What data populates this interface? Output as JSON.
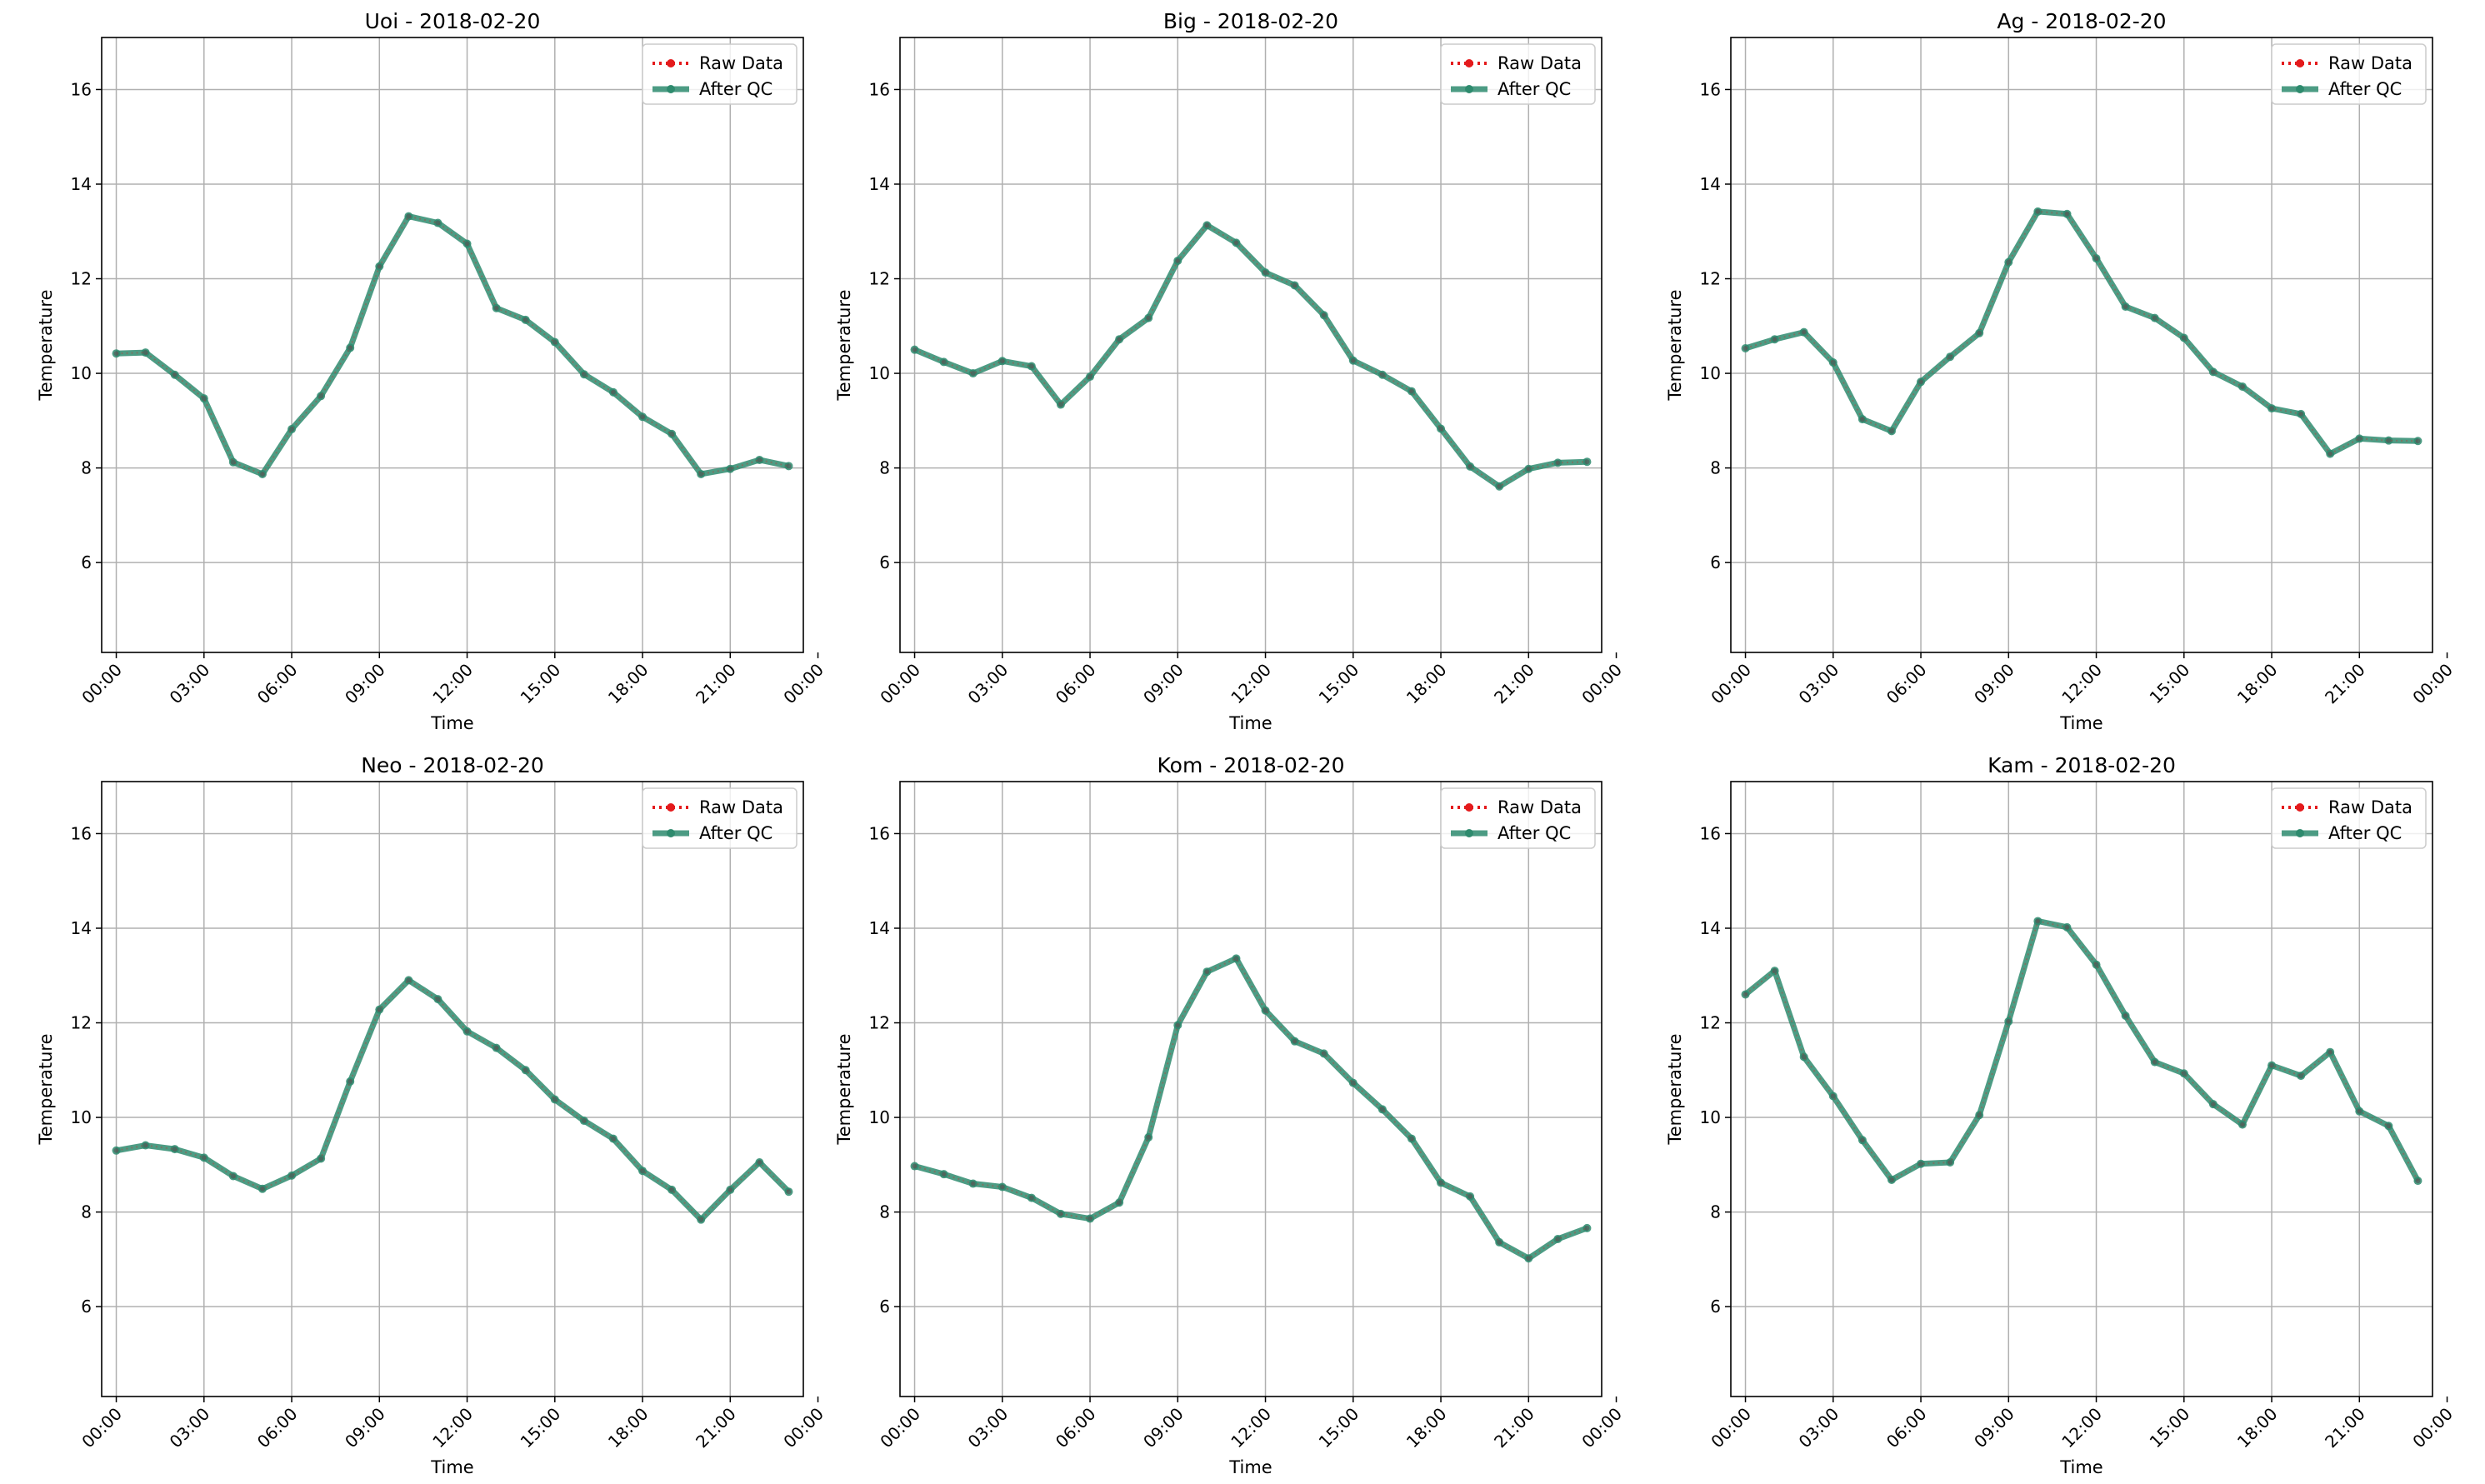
{
  "figure": {
    "colors": {
      "raw": "#e41a1c",
      "qc": "#2e8b6e",
      "grid": "#b0b0b0",
      "axis": "#000000"
    }
  },
  "chart_data": [
    {
      "type": "line",
      "title": "Uoi - 2018-02-20",
      "xlabel": "Time",
      "ylabel": "Temperature",
      "xlim": [
        -0.5,
        23.5
      ],
      "ylim": [
        4.1,
        17.1
      ],
      "xticks": [
        0,
        3,
        6,
        9,
        12,
        15,
        18,
        21,
        24
      ],
      "xtick_labels": [
        "00:00",
        "03:00",
        "06:00",
        "09:00",
        "12:00",
        "15:00",
        "18:00",
        "21:00",
        "00:00"
      ],
      "yticks": [
        6,
        8,
        10,
        12,
        14,
        16
      ],
      "ytick_labels": [
        "6",
        "8",
        "10",
        "12",
        "14",
        "16"
      ],
      "grid": true,
      "legend_position": "top-right",
      "x": [
        0,
        1,
        2,
        3,
        4,
        5,
        6,
        7,
        8,
        9,
        10,
        11,
        12,
        13,
        14,
        15,
        16,
        17,
        18,
        19,
        20,
        21,
        22,
        23
      ],
      "series": [
        {
          "name": "Raw Data",
          "style": "dotted-markers",
          "values": [
            10.42,
            10.44,
            9.97,
            9.47,
            8.12,
            7.87,
            8.82,
            9.52,
            10.54,
            12.26,
            13.32,
            13.18,
            12.74,
            11.38,
            11.13,
            10.66,
            9.98,
            9.6,
            9.08,
            8.72,
            7.87,
            7.98,
            8.17,
            8.04
          ]
        },
        {
          "name": "After QC",
          "style": "solid-markers",
          "values": [
            10.42,
            10.44,
            9.97,
            9.47,
            8.12,
            7.87,
            8.82,
            9.52,
            10.54,
            12.26,
            13.32,
            13.18,
            12.74,
            11.38,
            11.13,
            10.66,
            9.98,
            9.6,
            9.08,
            8.72,
            7.87,
            7.98,
            8.17,
            8.04
          ]
        }
      ]
    },
    {
      "type": "line",
      "title": "Big - 2018-02-20",
      "xlabel": "Time",
      "ylabel": "Temperature",
      "xlim": [
        -0.5,
        23.5
      ],
      "ylim": [
        4.1,
        17.1
      ],
      "xticks": [
        0,
        3,
        6,
        9,
        12,
        15,
        18,
        21,
        24
      ],
      "xtick_labels": [
        "00:00",
        "03:00",
        "06:00",
        "09:00",
        "12:00",
        "15:00",
        "18:00",
        "21:00",
        "00:00"
      ],
      "yticks": [
        6,
        8,
        10,
        12,
        14,
        16
      ],
      "ytick_labels": [
        "6",
        "8",
        "10",
        "12",
        "14",
        "16"
      ],
      "grid": true,
      "legend_position": "top-right",
      "x": [
        0,
        1,
        2,
        3,
        4,
        5,
        6,
        7,
        8,
        9,
        10,
        11,
        12,
        13,
        14,
        15,
        16,
        17,
        18,
        19,
        20,
        21,
        22,
        23
      ],
      "series": [
        {
          "name": "Raw Data",
          "style": "dotted-markers",
          "values": [
            10.5,
            10.24,
            10.0,
            10.26,
            10.15,
            9.34,
            9.93,
            10.72,
            11.17,
            12.38,
            13.13,
            12.76,
            12.13,
            11.86,
            11.23,
            10.27,
            9.97,
            9.62,
            8.83,
            8.03,
            7.61,
            7.98,
            8.11,
            8.13
          ]
        },
        {
          "name": "After QC",
          "style": "solid-markers",
          "values": [
            10.5,
            10.24,
            10.0,
            10.26,
            10.15,
            9.34,
            9.93,
            10.72,
            11.17,
            12.38,
            13.13,
            12.76,
            12.13,
            11.86,
            11.23,
            10.27,
            9.97,
            9.62,
            8.83,
            8.03,
            7.61,
            7.98,
            8.11,
            8.13
          ]
        }
      ]
    },
    {
      "type": "line",
      "title": "Ag - 2018-02-20",
      "xlabel": "Time",
      "ylabel": "Temperature",
      "xlim": [
        -0.5,
        23.5
      ],
      "ylim": [
        4.1,
        17.1
      ],
      "xticks": [
        0,
        3,
        6,
        9,
        12,
        15,
        18,
        21,
        24
      ],
      "xtick_labels": [
        "00:00",
        "03:00",
        "06:00",
        "09:00",
        "12:00",
        "15:00",
        "18:00",
        "21:00",
        "00:00"
      ],
      "yticks": [
        6,
        8,
        10,
        12,
        14,
        16
      ],
      "ytick_labels": [
        "6",
        "8",
        "10",
        "12",
        "14",
        "16"
      ],
      "grid": true,
      "legend_position": "top-right",
      "x": [
        0,
        1,
        2,
        3,
        4,
        5,
        6,
        7,
        8,
        9,
        10,
        11,
        12,
        13,
        14,
        15,
        16,
        17,
        18,
        19,
        20,
        21,
        22,
        23
      ],
      "series": [
        {
          "name": "Raw Data",
          "style": "dotted-markers",
          "values": [
            10.53,
            10.72,
            10.87,
            10.23,
            9.03,
            8.78,
            9.82,
            10.35,
            10.85,
            12.35,
            13.42,
            13.37,
            12.43,
            11.41,
            11.17,
            10.75,
            10.03,
            9.72,
            9.26,
            9.14,
            8.3,
            8.62,
            8.58,
            8.57
          ]
        },
        {
          "name": "After QC",
          "style": "solid-markers",
          "values": [
            10.53,
            10.72,
            10.87,
            10.23,
            9.03,
            8.78,
            9.82,
            10.35,
            10.85,
            12.35,
            13.42,
            13.37,
            12.43,
            11.41,
            11.17,
            10.75,
            10.03,
            9.72,
            9.26,
            9.14,
            8.3,
            8.62,
            8.58,
            8.57
          ]
        }
      ]
    },
    {
      "type": "line",
      "title": "Neo - 2018-02-20",
      "xlabel": "Time",
      "ylabel": "Temperature",
      "xlim": [
        -0.5,
        23.5
      ],
      "ylim": [
        4.1,
        17.1
      ],
      "xticks": [
        0,
        3,
        6,
        9,
        12,
        15,
        18,
        21,
        24
      ],
      "xtick_labels": [
        "00:00",
        "03:00",
        "06:00",
        "09:00",
        "12:00",
        "15:00",
        "18:00",
        "21:00",
        "00:00"
      ],
      "yticks": [
        6,
        8,
        10,
        12,
        14,
        16
      ],
      "ytick_labels": [
        "6",
        "8",
        "10",
        "12",
        "14",
        "16"
      ],
      "grid": true,
      "legend_position": "top-right",
      "x": [
        0,
        1,
        2,
        3,
        4,
        5,
        6,
        7,
        8,
        9,
        10,
        11,
        12,
        13,
        14,
        15,
        16,
        17,
        18,
        19,
        20,
        21,
        22,
        23
      ],
      "series": [
        {
          "name": "Raw Data",
          "style": "dotted-markers",
          "values": [
            9.3,
            9.41,
            9.33,
            9.15,
            8.76,
            8.49,
            8.77,
            9.13,
            10.76,
            12.28,
            12.9,
            12.5,
            11.82,
            11.47,
            11.0,
            10.38,
            9.93,
            9.55,
            8.87,
            8.47,
            7.84,
            8.47,
            9.05,
            8.43
          ]
        },
        {
          "name": "After QC",
          "style": "solid-markers",
          "values": [
            9.3,
            9.41,
            9.33,
            9.15,
            8.76,
            8.49,
            8.77,
            9.13,
            10.76,
            12.28,
            12.9,
            12.5,
            11.82,
            11.47,
            11.0,
            10.38,
            9.93,
            9.55,
            8.87,
            8.47,
            7.84,
            8.47,
            9.05,
            8.43
          ]
        }
      ]
    },
    {
      "type": "line",
      "title": "Kom - 2018-02-20",
      "xlabel": "Time",
      "ylabel": "Temperature",
      "xlim": [
        -0.5,
        23.5
      ],
      "ylim": [
        4.1,
        17.1
      ],
      "xticks": [
        0,
        3,
        6,
        9,
        12,
        15,
        18,
        21,
        24
      ],
      "xtick_labels": [
        "00:00",
        "03:00",
        "06:00",
        "09:00",
        "12:00",
        "15:00",
        "18:00",
        "21:00",
        "00:00"
      ],
      "yticks": [
        6,
        8,
        10,
        12,
        14,
        16
      ],
      "ytick_labels": [
        "6",
        "8",
        "10",
        "12",
        "14",
        "16"
      ],
      "grid": true,
      "legend_position": "top-right",
      "x": [
        0,
        1,
        2,
        3,
        4,
        5,
        6,
        7,
        8,
        9,
        10,
        11,
        12,
        13,
        14,
        15,
        16,
        17,
        18,
        19,
        20,
        21,
        22,
        23
      ],
      "series": [
        {
          "name": "Raw Data",
          "style": "dotted-markers",
          "values": [
            8.97,
            8.8,
            8.6,
            8.53,
            8.3,
            7.96,
            7.86,
            8.2,
            9.58,
            11.95,
            13.08,
            13.36,
            12.26,
            11.61,
            11.35,
            10.73,
            10.17,
            9.55,
            8.62,
            8.33,
            7.36,
            7.02,
            7.43,
            7.66
          ]
        },
        {
          "name": "After QC",
          "style": "solid-markers",
          "values": [
            8.97,
            8.8,
            8.6,
            8.53,
            8.3,
            7.96,
            7.86,
            8.2,
            9.58,
            11.95,
            13.08,
            13.36,
            12.26,
            11.61,
            11.35,
            10.73,
            10.17,
            9.55,
            8.62,
            8.33,
            7.36,
            7.02,
            7.43,
            7.66
          ]
        }
      ]
    },
    {
      "type": "line",
      "title": "Kam - 2018-02-20",
      "xlabel": "Time",
      "ylabel": "Temperature",
      "xlim": [
        -0.5,
        23.5
      ],
      "ylim": [
        4.1,
        17.1
      ],
      "xticks": [
        0,
        3,
        6,
        9,
        12,
        15,
        18,
        21,
        24
      ],
      "xtick_labels": [
        "00:00",
        "03:00",
        "06:00",
        "09:00",
        "12:00",
        "15:00",
        "18:00",
        "21:00",
        "00:00"
      ],
      "yticks": [
        6,
        8,
        10,
        12,
        14,
        16
      ],
      "ytick_labels": [
        "6",
        "8",
        "10",
        "12",
        "14",
        "16"
      ],
      "grid": true,
      "legend_position": "top-right",
      "x": [
        0,
        1,
        2,
        3,
        4,
        5,
        6,
        7,
        8,
        9,
        10,
        11,
        12,
        13,
        14,
        15,
        16,
        17,
        18,
        19,
        20,
        21,
        22,
        23
      ],
      "series": [
        {
          "name": "Raw Data",
          "style": "dotted-markers",
          "values": [
            12.6,
            13.1,
            11.28,
            10.45,
            9.52,
            8.68,
            9.02,
            9.05,
            10.05,
            12.03,
            14.15,
            14.02,
            13.23,
            12.15,
            11.17,
            10.93,
            10.28,
            9.85,
            11.1,
            10.88,
            11.38,
            10.13,
            9.82,
            8.66
          ]
        },
        {
          "name": "After QC",
          "style": "solid-markers",
          "values": [
            12.6,
            13.1,
            11.28,
            10.45,
            9.52,
            8.68,
            9.02,
            9.05,
            10.05,
            12.03,
            14.15,
            14.02,
            13.23,
            12.15,
            11.17,
            10.93,
            10.28,
            9.85,
            11.1,
            10.88,
            11.38,
            10.13,
            9.82,
            8.66
          ]
        }
      ]
    }
  ]
}
